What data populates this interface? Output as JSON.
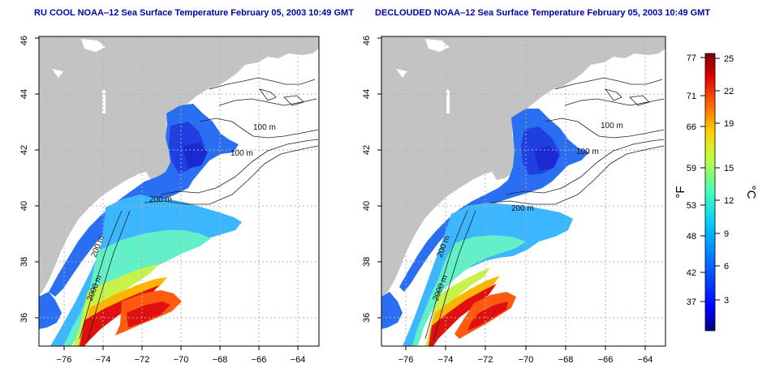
{
  "panels": [
    {
      "title": "RU COOL NOAA‒12 Sea Surface Temperature February 05, 2003 10:49 GMT",
      "x_ticks": [
        "−76",
        "−74",
        "−72",
        "−70",
        "−68",
        "−66",
        "−64"
      ],
      "y_ticks": [
        "36",
        "38",
        "40",
        "42",
        "44",
        "46"
      ],
      "contour_labels": [
        "100 m",
        "100 m",
        "200 m",
        "200 m",
        "2000 m"
      ]
    },
    {
      "title": "DECLOUDED NOAA‒12 Sea Surface Temperature February 05, 2003 10:49 GMT",
      "x_ticks": [
        "−76",
        "−74",
        "−72",
        "−70",
        "−68",
        "−66",
        "−64"
      ],
      "y_ticks": [
        "36",
        "38",
        "40",
        "42",
        "44",
        "46"
      ],
      "contour_labels": [
        "100 m",
        "100 m",
        "200 m",
        "200 m",
        "2000 m"
      ]
    }
  ],
  "colorbar": {
    "f_unit": "°F",
    "c_unit": "°C",
    "f_ticks": [
      "77",
      "71",
      "66",
      "59",
      "53",
      "48",
      "42",
      "37"
    ],
    "c_ticks": [
      "25",
      "22",
      "19",
      "15",
      "12",
      "9",
      "6",
      "3"
    ],
    "colors": [
      "#00007a",
      "#0000ff",
      "#0070ff",
      "#00c8ff",
      "#40ffbf",
      "#bfff40",
      "#ffd000",
      "#ff6000",
      "#e00000",
      "#7a0000"
    ]
  },
  "map_colors": {
    "land": "#c3c3c3",
    "ocean_missing": "#ffffff",
    "grid": "#b0b0b0"
  }
}
